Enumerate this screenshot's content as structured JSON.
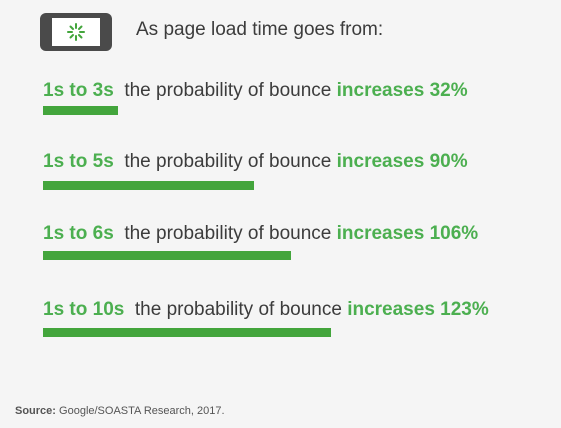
{
  "header": {
    "icon": "loading-phone-icon",
    "intro": "As page load time goes from:"
  },
  "chart_data": {
    "type": "bar",
    "categories": [
      "1s to 3s",
      "1s to 5s",
      "1s to 6s",
      "1s to 10s"
    ],
    "values": [
      32,
      90,
      106,
      123
    ],
    "middle_text": "the probability of bounce",
    "increase_label": "increases",
    "value_labels": [
      "32%",
      "90%",
      "106%",
      "123%"
    ]
  },
  "source": {
    "label": "Source:",
    "text": "Google/SOASTA Research, 2017."
  },
  "colors": {
    "accent": "#43a53c",
    "text": "#3c3c3c",
    "phone": "#4a4a4a"
  }
}
